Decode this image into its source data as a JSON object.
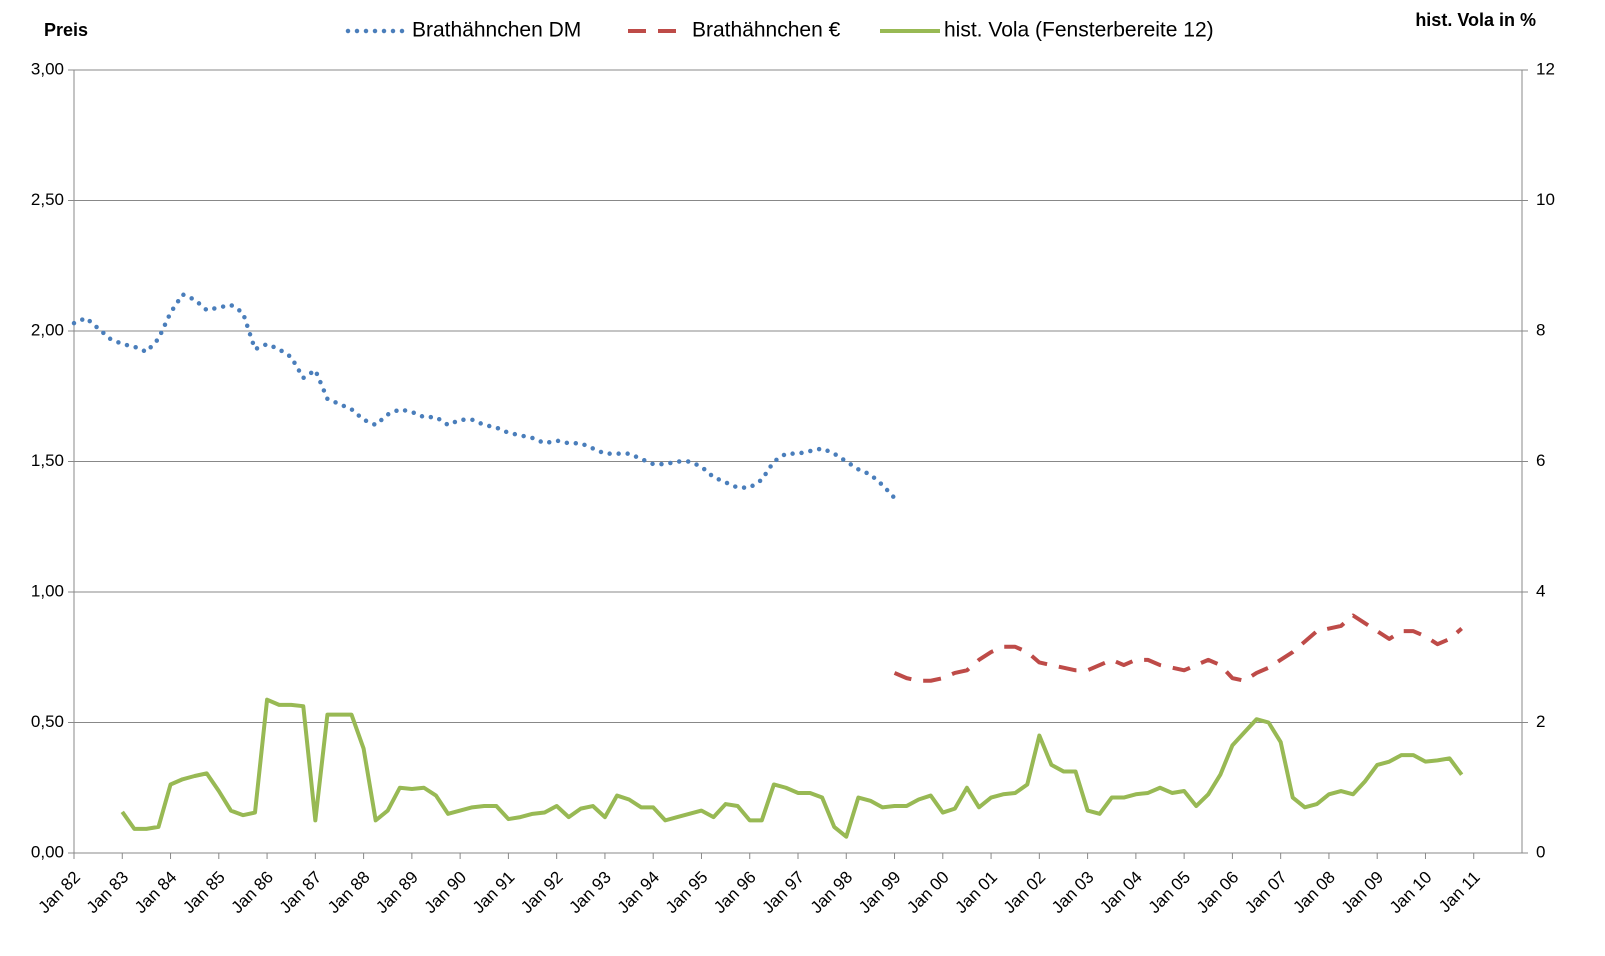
{
  "chart_data": {
    "type": "line",
    "y_label": "Preis",
    "y2_label": "hist. Vola in %",
    "x": [
      1982,
      1982.25,
      1982.5,
      1982.75,
      1983,
      1983.25,
      1983.5,
      1983.75,
      1984,
      1984.25,
      1984.5,
      1984.75,
      1985,
      1985.25,
      1985.5,
      1985.75,
      1986,
      1986.25,
      1986.5,
      1986.75,
      1987,
      1987.25,
      1987.5,
      1987.75,
      1988,
      1988.25,
      1988.5,
      1988.75,
      1989,
      1989.25,
      1989.5,
      1989.75,
      1990,
      1990.25,
      1990.5,
      1990.75,
      1991,
      1991.25,
      1991.5,
      1991.75,
      1992,
      1992.25,
      1992.5,
      1992.75,
      1993,
      1993.25,
      1993.5,
      1993.75,
      1994,
      1994.25,
      1994.5,
      1994.75,
      1995,
      1995.25,
      1995.5,
      1995.75,
      1996,
      1996.25,
      1996.5,
      1996.75,
      1997,
      1997.25,
      1997.5,
      1997.75,
      1998,
      1998.25,
      1998.5,
      1998.75,
      1999,
      1999.25,
      1999.5,
      1999.75,
      2000,
      2000.25,
      2000.5,
      2000.75,
      2001,
      2001.25,
      2001.5,
      2001.75,
      2002,
      2002.25,
      2002.5,
      2002.75,
      2003,
      2003.25,
      2003.5,
      2003.75,
      2004,
      2004.25,
      2004.5,
      2004.75,
      2005,
      2005.25,
      2005.5,
      2005.75,
      2006,
      2006.25,
      2006.5,
      2006.75,
      2007,
      2007.25,
      2007.5,
      2007.75,
      2008,
      2008.25,
      2008.5,
      2008.75,
      2009,
      2009.25,
      2009.5,
      2009.75,
      2010,
      2010.25,
      2010.5,
      2010.75
    ],
    "series": [
      {
        "name": "Brathähnchen DM",
        "color": "#4a7ebb",
        "style": "dotted",
        "values": [
          2.03,
          2.05,
          2.01,
          1.97,
          1.95,
          1.94,
          1.92,
          1.97,
          2.07,
          2.14,
          2.12,
          2.08,
          2.09,
          2.1,
          2.07,
          1.93,
          1.95,
          1.93,
          1.9,
          1.82,
          1.85,
          1.74,
          1.72,
          1.7,
          1.66,
          1.64,
          1.68,
          1.7,
          1.69,
          1.67,
          1.67,
          1.64,
          1.66,
          1.66,
          1.64,
          1.63,
          1.61,
          1.6,
          1.59,
          1.57,
          1.58,
          1.57,
          1.57,
          1.55,
          1.53,
          1.53,
          1.53,
          1.51,
          1.49,
          1.49,
          1.5,
          1.5,
          1.48,
          1.44,
          1.42,
          1.4,
          1.4,
          1.43,
          1.5,
          1.53,
          1.53,
          1.54,
          1.55,
          1.53,
          1.5,
          1.47,
          1.45,
          1.41,
          1.36,
          null,
          null,
          null,
          null,
          null,
          null,
          null,
          null,
          null,
          null,
          null,
          null,
          null,
          null,
          null,
          null,
          null,
          null,
          null,
          null,
          null,
          null,
          null,
          null,
          null,
          null,
          null,
          null,
          null,
          null,
          null,
          null,
          null,
          null,
          null,
          null,
          null,
          null,
          null,
          null,
          null,
          null,
          null,
          null,
          null,
          null,
          null
        ]
      },
      {
        "name": "Brathähnchen €",
        "color": "#be4b48",
        "style": "dashed",
        "values": [
          null,
          null,
          null,
          null,
          null,
          null,
          null,
          null,
          null,
          null,
          null,
          null,
          null,
          null,
          null,
          null,
          null,
          null,
          null,
          null,
          null,
          null,
          null,
          null,
          null,
          null,
          null,
          null,
          null,
          null,
          null,
          null,
          null,
          null,
          null,
          null,
          null,
          null,
          null,
          null,
          null,
          null,
          null,
          null,
          null,
          null,
          null,
          null,
          null,
          null,
          null,
          null,
          null,
          null,
          null,
          null,
          null,
          null,
          null,
          null,
          null,
          null,
          null,
          null,
          null,
          null,
          null,
          null,
          0.69,
          0.67,
          0.66,
          0.66,
          0.67,
          0.69,
          0.7,
          0.74,
          0.77,
          0.79,
          0.79,
          0.77,
          0.73,
          0.72,
          0.71,
          0.7,
          0.7,
          0.72,
          0.74,
          0.72,
          0.74,
          0.74,
          0.72,
          0.71,
          0.7,
          0.72,
          0.74,
          0.72,
          0.67,
          0.66,
          0.69,
          0.71,
          0.74,
          0.77,
          0.81,
          0.85,
          0.86,
          0.87,
          0.91,
          0.88,
          0.85,
          0.82,
          0.85,
          0.85,
          0.83,
          0.8,
          0.82,
          0.86
        ]
      },
      {
        "name": "hist. Vola (Fensterbereite 12)",
        "color": "#98b954",
        "style": "solid",
        "axis": "y2",
        "values": [
          null,
          null,
          null,
          null,
          0.63,
          0.37,
          0.37,
          0.4,
          1.05,
          1.13,
          1.18,
          1.22,
          0.95,
          0.65,
          0.58,
          0.62,
          2.35,
          2.27,
          2.27,
          2.25,
          0.5,
          2.12,
          2.12,
          2.12,
          1.6,
          0.5,
          0.65,
          1.0,
          0.98,
          1.0,
          0.88,
          0.6,
          0.65,
          0.7,
          0.72,
          0.72,
          0.52,
          0.55,
          0.6,
          0.62,
          0.72,
          0.55,
          0.68,
          0.72,
          0.55,
          0.88,
          0.82,
          0.7,
          0.7,
          0.5,
          0.55,
          0.6,
          0.65,
          0.55,
          0.75,
          0.72,
          0.5,
          0.5,
          1.05,
          1.0,
          0.92,
          0.92,
          0.85,
          0.4,
          0.25,
          0.85,
          0.8,
          0.7,
          0.72,
          0.72,
          0.82,
          0.88,
          0.62,
          0.68,
          1.0,
          0.7,
          0.85,
          0.9,
          0.92,
          1.05,
          1.8,
          1.35,
          1.25,
          1.25,
          0.65,
          0.6,
          0.85,
          0.85,
          0.9,
          0.92,
          1.0,
          0.92,
          0.95,
          0.72,
          0.9,
          1.2,
          1.65,
          1.85,
          2.05,
          2.0,
          1.7,
          0.85,
          0.7,
          0.75,
          0.9,
          0.95,
          0.9,
          1.1,
          1.35,
          1.4,
          1.5,
          1.5,
          1.4,
          1.42,
          1.45,
          1.2
        ]
      }
    ],
    "xlim": [
      1982,
      2012
    ],
    "xticks": [
      {
        "value": 1982,
        "label": "Jan 82"
      },
      {
        "value": 1983,
        "label": "Jan 83"
      },
      {
        "value": 1984,
        "label": "Jan 84"
      },
      {
        "value": 1985,
        "label": "Jan 85"
      },
      {
        "value": 1986,
        "label": "Jan 86"
      },
      {
        "value": 1987,
        "label": "Jan 87"
      },
      {
        "value": 1988,
        "label": "Jan 88"
      },
      {
        "value": 1989,
        "label": "Jan 89"
      },
      {
        "value": 1990,
        "label": "Jan 90"
      },
      {
        "value": 1991,
        "label": "Jan 91"
      },
      {
        "value": 1992,
        "label": "Jan 92"
      },
      {
        "value": 1993,
        "label": "Jan 93"
      },
      {
        "value": 1994,
        "label": "Jan 94"
      },
      {
        "value": 1995,
        "label": "Jan 95"
      },
      {
        "value": 1996,
        "label": "Jan 96"
      },
      {
        "value": 1997,
        "label": "Jan 97"
      },
      {
        "value": 1998,
        "label": "Jan 98"
      },
      {
        "value": 1999,
        "label": "Jan 99"
      },
      {
        "value": 2000,
        "label": "Jan 00"
      },
      {
        "value": 2001,
        "label": "Jan 01"
      },
      {
        "value": 2002,
        "label": "Jan 02"
      },
      {
        "value": 2003,
        "label": "Jan 03"
      },
      {
        "value": 2004,
        "label": "Jan 04"
      },
      {
        "value": 2005,
        "label": "Jan 05"
      },
      {
        "value": 2006,
        "label": "Jan 06"
      },
      {
        "value": 2007,
        "label": "Jan 07"
      },
      {
        "value": 2008,
        "label": "Jan 08"
      },
      {
        "value": 2009,
        "label": "Jan 09"
      },
      {
        "value": 2010,
        "label": "Jan 10"
      },
      {
        "value": 2011,
        "label": "Jan 11"
      }
    ],
    "ylim": [
      0,
      3
    ],
    "yticks": [
      {
        "value": 0,
        "label": "0,00"
      },
      {
        "value": 0.5,
        "label": "0,50"
      },
      {
        "value": 1,
        "label": "1,00"
      },
      {
        "value": 1.5,
        "label": "1,50"
      },
      {
        "value": 2,
        "label": "2,00"
      },
      {
        "value": 2.5,
        "label": "2,50"
      },
      {
        "value": 3,
        "label": "3,00"
      }
    ],
    "y2lim": [
      0,
      12
    ],
    "y2ticks": [
      0,
      2,
      4,
      6,
      8,
      10,
      12
    ],
    "grid": true,
    "legend": "top"
  }
}
